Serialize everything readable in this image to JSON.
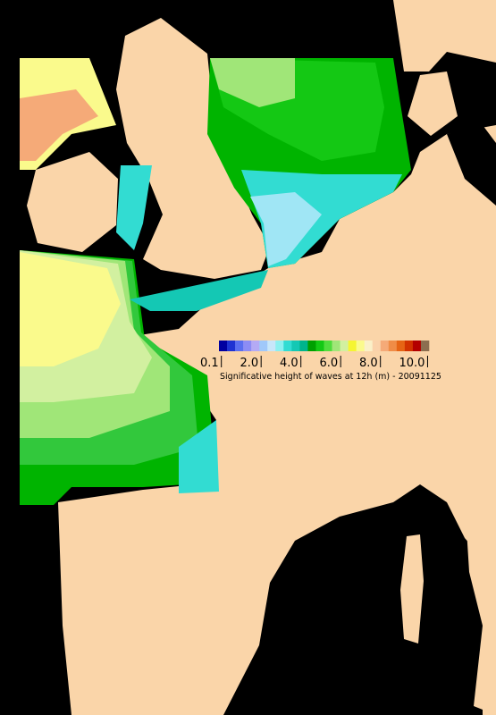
{
  "colorbar": {
    "colors": [
      "#0000a0",
      "#1e32d2",
      "#5a6ef0",
      "#8c8cf5",
      "#b4aaf5",
      "#a0c8fa",
      "#c8e6fa",
      "#8cf0f0",
      "#32dcd2",
      "#14c8b4",
      "#00b48c",
      "#00a000",
      "#14c814",
      "#50dc3c",
      "#a0e678",
      "#d2f0a0",
      "#f5f532",
      "#fafa8c",
      "#faf0c8",
      "#fad2aa",
      "#f5aa78",
      "#f08c46",
      "#e66414",
      "#d23200",
      "#b40000",
      "#8c6e50"
    ],
    "labels": [
      "0.1",
      "2.0",
      "4.0",
      "6.0",
      "8.0",
      "10.0"
    ],
    "caption": "Significative height of waves at 12h (m) - 20091125"
  }
}
